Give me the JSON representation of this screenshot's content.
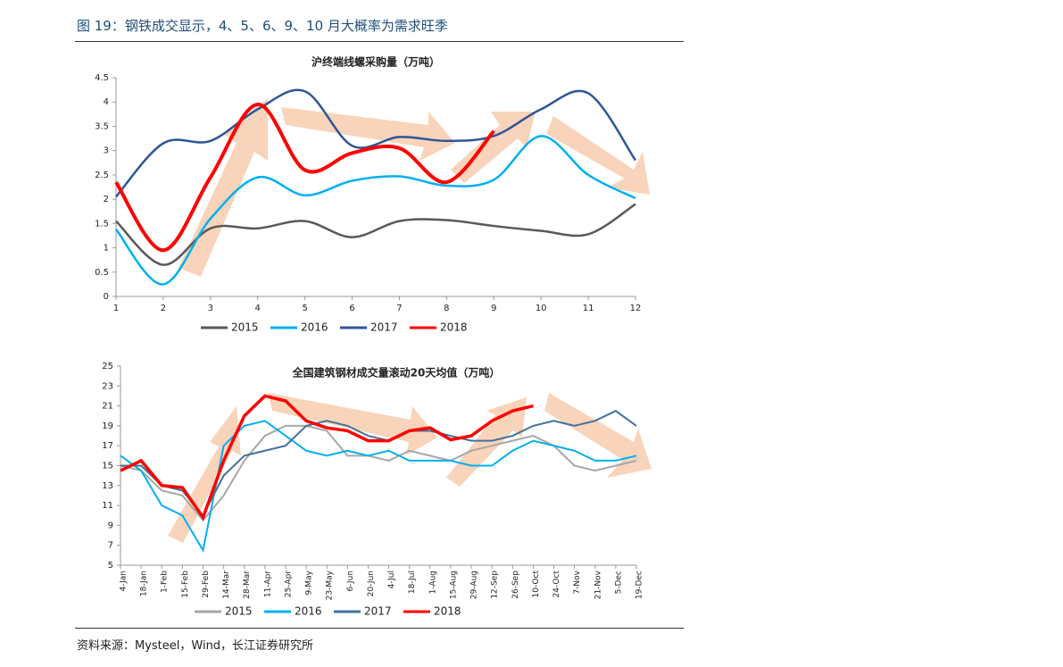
{
  "header": {
    "title": "图 19：钢铁成交显示，4、5、6、9、10 月大概率为需求旺季"
  },
  "footer": {
    "source": "资料来源：Mysteel，Wind，长江证券研究所"
  },
  "chart_data": [
    {
      "type": "line",
      "title": "沪终端线螺采购量（万吨）",
      "x": [
        1,
        2,
        3,
        4,
        5,
        6,
        7,
        8,
        9,
        10,
        11,
        12
      ],
      "xlim": [
        1,
        12
      ],
      "xticks": [
        1,
        2,
        3,
        4,
        5,
        6,
        7,
        8,
        9,
        10,
        11,
        12
      ],
      "ylim": [
        0,
        4.5
      ],
      "yticks": [
        0,
        0.5,
        1,
        1.5,
        2,
        2.5,
        3,
        3.5,
        4,
        4.5
      ],
      "series": [
        {
          "name": "2015",
          "color": "#595959",
          "values": [
            1.55,
            0.65,
            1.4,
            1.4,
            1.55,
            1.22,
            1.55,
            1.57,
            1.45,
            1.35,
            1.28,
            1.9
          ]
        },
        {
          "name": "2016",
          "color": "#00b0f0",
          "values": [
            1.38,
            0.25,
            1.6,
            2.45,
            2.08,
            2.38,
            2.47,
            2.28,
            2.4,
            3.3,
            2.5,
            2.02
          ]
        },
        {
          "name": "2017",
          "color": "#2f5597",
          "values": [
            2.05,
            3.15,
            3.2,
            3.85,
            4.22,
            3.1,
            3.28,
            3.2,
            3.3,
            3.85,
            4.18,
            2.8
          ]
        },
        {
          "name": "2018",
          "color": "#ff0000",
          "values": [
            2.35,
            0.95,
            2.45,
            3.95,
            2.6,
            2.95,
            3.05,
            2.35,
            3.4,
            null,
            null,
            null
          ]
        }
      ]
    },
    {
      "type": "line",
      "title": "全国建筑钢材成交量滚动20天均值（万吨）",
      "categories": [
        "4-Jan",
        "18-Jan",
        "1-Feb",
        "15-Feb",
        "29-Feb",
        "14-Mar",
        "28-Mar",
        "11-Apr",
        "25-Apr",
        "9-May",
        "23-May",
        "6-Jun",
        "20-Jun",
        "4-Jul",
        "18-Jul",
        "1-Aug",
        "15-Aug",
        "29-Aug",
        "12-Sep",
        "26-Sep",
        "10-Oct",
        "24-Oct",
        "7-Nov",
        "21-Nov",
        "5-Dec",
        "19-Dec"
      ],
      "ylim": [
        5,
        25
      ],
      "yticks": [
        5,
        7,
        9,
        11,
        13,
        15,
        17,
        19,
        21,
        23,
        25
      ],
      "series": [
        {
          "name": "2015",
          "color": "#a6a6a6",
          "values": [
            15,
            14.5,
            12.5,
            12,
            9.5,
            12,
            15.5,
            18,
            19,
            19,
            18.5,
            16,
            16,
            15.5,
            16.5,
            16,
            15.5,
            16.5,
            17,
            17.5,
            18,
            17,
            15,
            14.5,
            15,
            15.5
          ]
        },
        {
          "name": "2016",
          "color": "#00b0f0",
          "values": [
            16,
            14.5,
            11,
            10,
            6.5,
            17,
            19,
            19.5,
            18,
            16.5,
            16,
            16.5,
            16,
            16.5,
            15.5,
            15.5,
            15.5,
            15,
            15,
            16.5,
            17.5,
            17,
            16.5,
            15.5,
            15.5,
            16
          ]
        },
        {
          "name": "2017",
          "color": "#41719c",
          "values": [
            15,
            15,
            13,
            12.5,
            10,
            14,
            16,
            16.5,
            17,
            19,
            19.5,
            19,
            18,
            17.5,
            18.5,
            18.5,
            18,
            17.5,
            17.5,
            18,
            19,
            19.5,
            19,
            19.5,
            20.5,
            19
          ]
        },
        {
          "name": "2018",
          "color": "#ff0000",
          "values": [
            14.5,
            15.5,
            13,
            12.8,
            9.8,
            15.5,
            20,
            22,
            21.5,
            19.5,
            18.8,
            18.5,
            17.5,
            17.5,
            18.5,
            18.8,
            17.6,
            18,
            19.5,
            20.5,
            21,
            null,
            null,
            null,
            null,
            null
          ]
        }
      ]
    }
  ]
}
